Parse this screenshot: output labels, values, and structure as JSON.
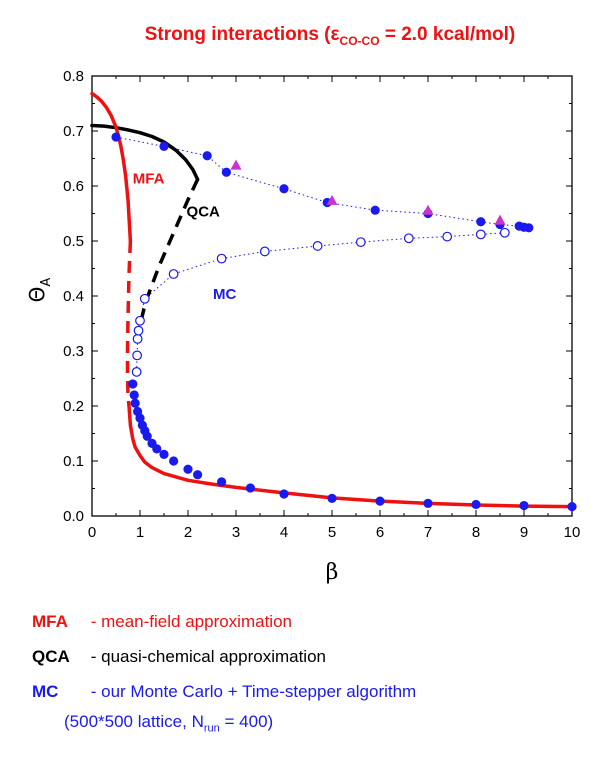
{
  "chart_data": {
    "type": "scatter",
    "title": {
      "prefix": "Strong interactions (",
      "epsilon": "ε",
      "subscript": "CO-CO",
      "suffix": " = 2.0 kcal/mol)"
    },
    "xlabel": "β",
    "ylabel": {
      "main": "Θ",
      "subscript": "A"
    },
    "xlim": [
      0,
      10
    ],
    "ylim": [
      0,
      0.8
    ],
    "xticks": [
      "0",
      "1",
      "2",
      "3",
      "4",
      "5",
      "6",
      "7",
      "8",
      "9",
      "10"
    ],
    "yticks": [
      "0.0",
      "0.1",
      "0.2",
      "0.3",
      "0.4",
      "0.5",
      "0.6",
      "0.7",
      "0.8"
    ],
    "grid": false,
    "colors": {
      "mfa": "#ee1111",
      "qca": "#000000",
      "mc": "#1a1aee",
      "triangle": "#cc33cc"
    },
    "curve_labels": {
      "mfa": "MFA",
      "qca": "QCA",
      "mc": "MC"
    },
    "series": {
      "mfa_upper": {
        "x": [
          0,
          0.1,
          0.2,
          0.3,
          0.4,
          0.5,
          0.55,
          0.6,
          0.65,
          0.7,
          0.75,
          0.8
        ],
        "y": [
          0.768,
          0.762,
          0.754,
          0.743,
          0.728,
          0.707,
          0.691,
          0.673,
          0.649,
          0.619,
          0.575,
          0.5
        ]
      },
      "mfa_unstable": {
        "x": [
          0.8,
          0.77,
          0.75,
          0.74,
          0.74,
          0.75,
          0.77
        ],
        "y": [
          0.5,
          0.44,
          0.36,
          0.3,
          0.26,
          0.22,
          0.2
        ]
      },
      "mfa_lower": {
        "x": [
          0.77,
          0.8,
          0.85,
          0.9,
          1.0,
          1.1,
          1.25,
          1.5,
          2.0,
          2.5,
          3.0,
          4.0,
          5.0,
          6.0,
          7.0,
          8.0,
          9.0,
          10.0
        ],
        "y": [
          0.2,
          0.165,
          0.14,
          0.125,
          0.11,
          0.098,
          0.088,
          0.077,
          0.065,
          0.058,
          0.052,
          0.042,
          0.033,
          0.027,
          0.023,
          0.02,
          0.018,
          0.017
        ]
      },
      "qca_upper": {
        "x": [
          0,
          0.25,
          0.5,
          0.75,
          1.0,
          1.25,
          1.5,
          1.75,
          1.95,
          2.1,
          2.2
        ],
        "y": [
          0.71,
          0.709,
          0.706,
          0.702,
          0.697,
          0.69,
          0.68,
          0.665,
          0.648,
          0.63,
          0.612
        ]
      },
      "qca_unstable": {
        "x": [
          2.2,
          2.0,
          1.8,
          1.6,
          1.4,
          1.25,
          1.12,
          1.05,
          1.0
        ],
        "y": [
          0.612,
          0.575,
          0.535,
          0.495,
          0.455,
          0.42,
          0.39,
          0.365,
          0.345
        ]
      },
      "mc_upper_filled": {
        "x": [
          0.5,
          1.5,
          2.4,
          2.8,
          4.0,
          4.9,
          5.9,
          7.0,
          8.1,
          8.5,
          8.9,
          9.0,
          9.1
        ],
        "y": [
          0.689,
          0.672,
          0.655,
          0.625,
          0.595,
          0.57,
          0.556,
          0.55,
          0.535,
          0.53,
          0.527,
          0.525,
          0.524
        ]
      },
      "mc_triangles": {
        "x": [
          3.0,
          5.0,
          7.0,
          8.5
        ],
        "y": [
          0.637,
          0.573,
          0.555,
          0.537
        ]
      },
      "mc_unstable_open": {
        "x": [
          0.93,
          0.94,
          0.95,
          0.97,
          1.0,
          1.1,
          1.7,
          2.7,
          3.6,
          4.7,
          5.6,
          6.6,
          7.4,
          8.1,
          8.6
        ],
        "y": [
          0.262,
          0.292,
          0.322,
          0.337,
          0.355,
          0.395,
          0.44,
          0.468,
          0.481,
          0.491,
          0.498,
          0.505,
          0.508,
          0.512,
          0.515
        ]
      },
      "mc_lower_filled": {
        "x": [
          0.85,
          0.88,
          0.9,
          0.95,
          1.0,
          1.05,
          1.1,
          1.15,
          1.25,
          1.35,
          1.5,
          1.7,
          2.0,
          2.2,
          2.7,
          3.3,
          4.0,
          5.0,
          6.0,
          7.0,
          8.0,
          9.0,
          10.0
        ],
        "y": [
          0.24,
          0.22,
          0.205,
          0.19,
          0.178,
          0.165,
          0.155,
          0.145,
          0.132,
          0.122,
          0.112,
          0.1,
          0.085,
          0.075,
          0.062,
          0.051,
          0.04,
          0.032,
          0.027,
          0.023,
          0.021,
          0.019,
          0.017
        ]
      }
    }
  },
  "legend": [
    {
      "abbr": "MFA",
      "sep": " - ",
      "text": "mean-field approximation",
      "color": "#ee1111"
    },
    {
      "abbr": "QCA",
      "sep": " - ",
      "text": "quasi-chemical approximation",
      "color": "#000000"
    },
    {
      "abbr": "MC",
      "sep": " - ",
      "text": "our Monte Carlo + Time-stepper algorithm",
      "color": "#1a1aee"
    }
  ],
  "legend_note": {
    "prefix": "(500*500 lattice, N",
    "subscript": "run",
    "suffix": " = 400)",
    "color": "#1a1aee"
  }
}
